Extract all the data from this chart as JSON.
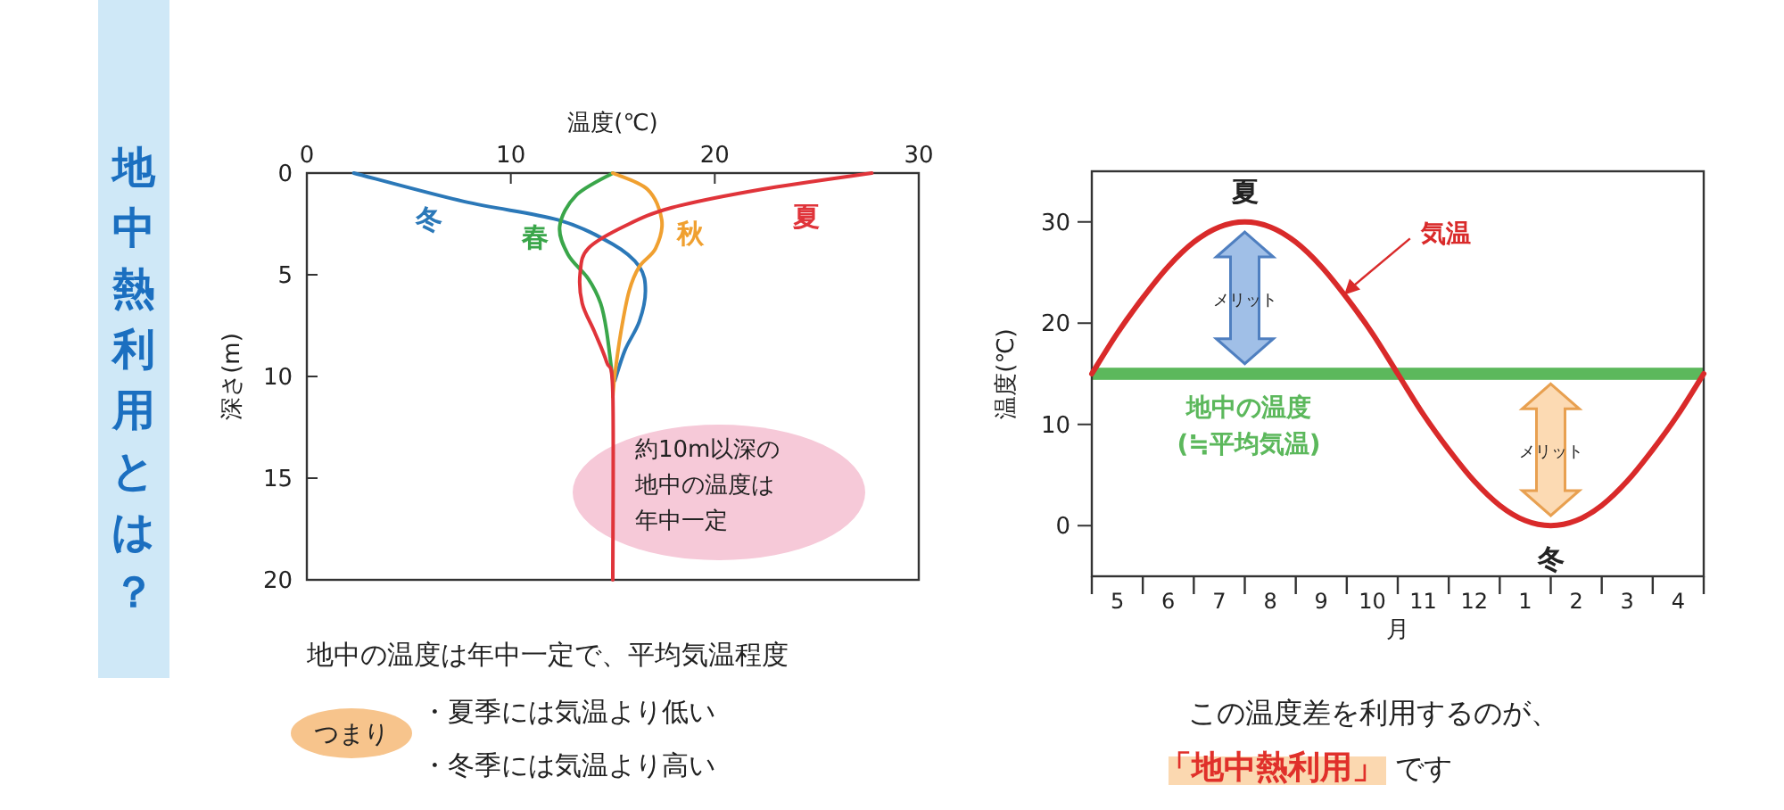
{
  "chart_data": [
    {
      "type": "line",
      "title": "地中熱利用とは？",
      "xlabel": "温度(℃)",
      "ylabel": "深さ(m)",
      "xlim": [
        0,
        30
      ],
      "xticks": [
        0,
        10,
        20,
        30
      ],
      "ylim": [
        20,
        0
      ],
      "yticks": [
        0,
        5,
        10,
        15,
        20
      ],
      "series": [
        {
          "name": "冬",
          "color": "#2b78b8",
          "x": [
            2.3,
            7.7,
            12.3,
            15,
            16.3,
            16.6,
            16.3,
            15.6,
            15.1
          ],
          "values": [
            0,
            1.4,
            2.3,
            3.5,
            4.6,
            5.8,
            7.3,
            8.7,
            10.2
          ]
        },
        {
          "name": "春",
          "color": "#3aa64a",
          "x": [
            15,
            13.2,
            12.4,
            12.8,
            13.8,
            14.4,
            14.7,
            15
          ],
          "values": [
            0,
            1.1,
            2.6,
            4,
            5.2,
            6.4,
            7.8,
            10.2
          ]
        },
        {
          "name": "秋",
          "color": "#f0a030",
          "x": [
            15,
            16.7,
            17.4,
            17.1,
            16.3,
            15.8,
            15.4,
            15.1,
            15
          ],
          "values": [
            0,
            0.8,
            2.3,
            3.7,
            4.6,
            5.8,
            7.8,
            9.9,
            11
          ]
        },
        {
          "name": "夏",
          "color": "#e0343a",
          "x": [
            27.7,
            22.3,
            17.9,
            15.6,
            13.8,
            13.4,
            13.5,
            14.1,
            14.7,
            15,
            15
          ],
          "values": [
            0,
            0.8,
            1.7,
            2.6,
            3.7,
            4.9,
            6.4,
            7.8,
            9.3,
            10.8,
            20
          ]
        }
      ],
      "annotations": [
        "約10m以深の",
        "地中の温度は",
        "年中一定",
        "地中の温度は年中一定で、平均気温程度",
        "つまり",
        "・夏季には気温より低い",
        "・冬季には気温より高い"
      ]
    },
    {
      "type": "line",
      "xlabel": "月",
      "ylabel": "温度(℃)",
      "categories": [
        null,
        "5",
        null,
        "6",
        null,
        "7",
        null,
        "8",
        null,
        "9",
        null,
        "10",
        null,
        "11",
        null,
        "12",
        null,
        "1",
        null,
        "2",
        null,
        "3",
        null,
        "4",
        null
      ],
      "ylim": [
        -5,
        35
      ],
      "yticks": [
        0,
        10,
        20,
        30
      ],
      "series": [
        {
          "name": "気温",
          "color": "#d92a2a",
          "values": [
            15,
            19,
            22.5,
            25.6,
            28,
            29.5,
            30,
            29.5,
            28,
            25.6,
            22.5,
            19,
            15,
            11,
            7.5,
            4.4,
            2,
            0.5,
            0,
            0.5,
            2,
            4.4,
            7.5,
            11,
            15
          ]
        }
      ],
      "bands": [
        {
          "axis": "y",
          "from": 14.4,
          "to": 15.6,
          "label": "地中の温度",
          "color": "#5cb85c"
        }
      ],
      "annotations": [
        "夏",
        "冬",
        "メリット",
        "メリット",
        "(≒平均気温)",
        "この温度差を利用するのが、",
        "「地中熱利用」",
        "です"
      ]
    }
  ]
}
